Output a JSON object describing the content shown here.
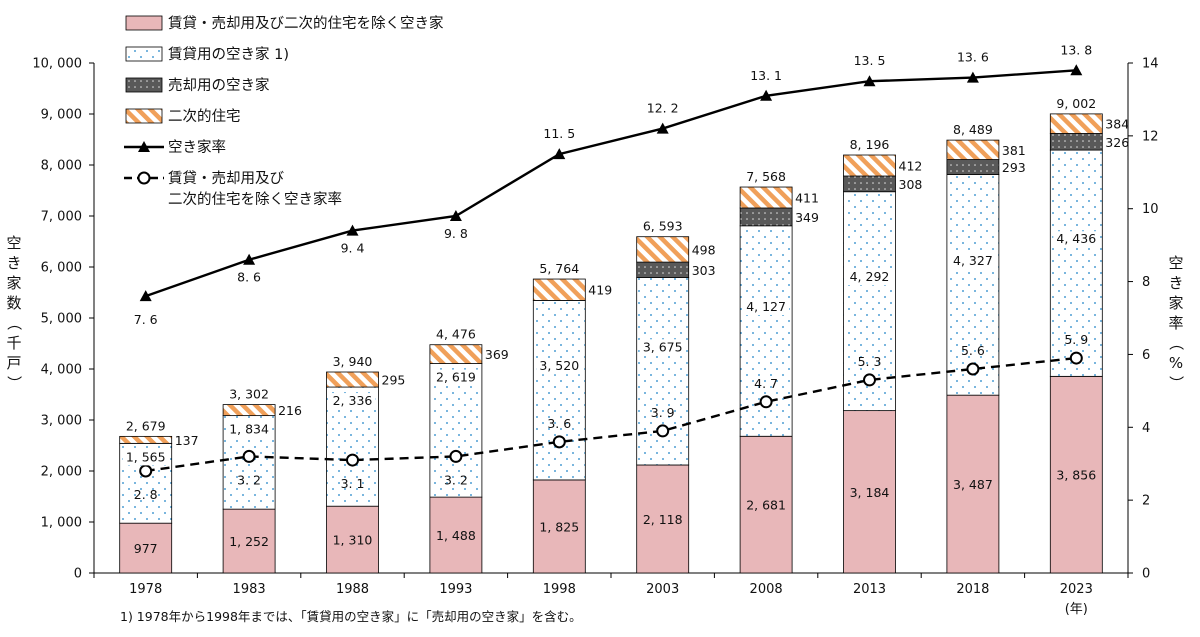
{
  "chart_data": {
    "type": "bar",
    "stacked": true,
    "categories": [
      "1978",
      "1983",
      "1988",
      "1993",
      "1998",
      "2003",
      "2008",
      "2013",
      "2018",
      "2023"
    ],
    "x_unit": "(年)",
    "series": [
      {
        "name": "賃貸・売却用及び二次的住宅を除く空き家",
        "type": "bar",
        "values": [
          977,
          1252,
          1310,
          1488,
          1825,
          2118,
          2681,
          3184,
          3487,
          3856
        ]
      },
      {
        "name": "賃貸用の空き家 1)",
        "type": "bar",
        "values": [
          1565,
          1834,
          2336,
          2619,
          3520,
          3675,
          4127,
          4292,
          4327,
          4436
        ]
      },
      {
        "name": "売却用の空き家",
        "type": "bar",
        "values": [
          null,
          null,
          null,
          null,
          null,
          303,
          349,
          308,
          293,
          326
        ]
      },
      {
        "name": "二次的住宅",
        "type": "bar",
        "values": [
          137,
          216,
          295,
          369,
          419,
          498,
          411,
          412,
          381,
          384
        ]
      },
      {
        "name": "空き家率",
        "type": "line",
        "axis": "right",
        "values": [
          7.6,
          8.6,
          9.4,
          9.8,
          11.5,
          12.2,
          13.1,
          13.5,
          13.6,
          13.8
        ]
      },
      {
        "name": "賃貸・売却用及び\n二次的住宅を除く空き家率",
        "type": "line",
        "axis": "right",
        "values": [
          2.8,
          3.2,
          3.1,
          3.2,
          3.6,
          3.9,
          4.7,
          5.3,
          5.6,
          5.9
        ]
      }
    ],
    "totals": [
      2679,
      3302,
      3940,
      4476,
      5764,
      6593,
      7568,
      8196,
      8489,
      9002
    ],
    "value_labels": {
      "base": [
        "977",
        "1, 252",
        "1, 310",
        "1, 488",
        "1, 825",
        "2, 118",
        "2, 681",
        "3, 184",
        "3, 487",
        "3, 856"
      ],
      "rent": [
        "1, 565",
        "1, 834",
        "2, 336",
        "2, 619",
        "3, 520",
        "3, 675",
        "4, 127",
        "4, 292",
        "4, 327",
        "4, 436"
      ],
      "sale": [
        "",
        "",
        "",
        "",
        "",
        "303",
        "349",
        "308",
        "293",
        "326"
      ],
      "second": [
        "137",
        "216",
        "295",
        "369",
        "419",
        "498",
        "411",
        "412",
        "381",
        "384"
      ],
      "totals": [
        "2, 679",
        "3, 302",
        "3, 940",
        "4, 476",
        "5, 764",
        "6, 593",
        "7, 568",
        "8, 196",
        "8, 489",
        "9, 002"
      ],
      "rate_total": [
        "7. 6",
        "8. 6",
        "9. 4",
        "9. 8",
        "11. 5",
        "12. 2",
        "13. 1",
        "13. 5",
        "13. 6",
        "13. 8"
      ],
      "rate_base": [
        "2. 8",
        "3. 2",
        "3. 1",
        "3. 2",
        "3. 6",
        "3. 9",
        "4. 7",
        "5. 3",
        "5. 6",
        "5. 9"
      ]
    },
    "y_left": {
      "label": "空き家数（千戸）",
      "ylim": [
        0,
        10000
      ],
      "ticks": [
        0,
        1000,
        2000,
        3000,
        4000,
        5000,
        6000,
        7000,
        8000,
        9000,
        10000
      ],
      "tick_labels": [
        "0",
        "1, 000",
        "2, 000",
        "3, 000",
        "4, 000",
        "5, 000",
        "6, 000",
        "7, 000",
        "8, 000",
        "9, 000",
        "10, 000"
      ]
    },
    "y_right": {
      "label": "空き家率（%）",
      "ylim": [
        0,
        14
      ],
      "ticks": [
        0,
        2,
        4,
        6,
        8,
        10,
        12,
        14
      ],
      "tick_labels": [
        "0",
        "2",
        "4",
        "6",
        "8",
        "10",
        "12",
        "14"
      ]
    },
    "legend": {
      "placement": "top-left",
      "items": [
        {
          "kind": "base",
          "label": "賃貸・売却用及び二次的住宅を除く空き家"
        },
        {
          "kind": "rent",
          "label": "賃貸用の空き家 1)"
        },
        {
          "kind": "sale",
          "label": "売却用の空き家"
        },
        {
          "kind": "second",
          "label": "二次的住宅"
        },
        {
          "kind": "line",
          "label": "空き家率"
        },
        {
          "kind": "dash",
          "label": "賃貸・売却用及び",
          "label2": "二次的住宅を除く空き家率"
        }
      ]
    },
    "colors": {
      "base": "#e8b7b9",
      "rent_dots": "#4f9fd4",
      "sale": "#595959",
      "second": "#f0a05a",
      "line": "#000000"
    },
    "grid": false
  },
  "footnote": "1) 1978年から1998年までは、「賃貸用の空き家」に「売却用の空き家」を含む。"
}
